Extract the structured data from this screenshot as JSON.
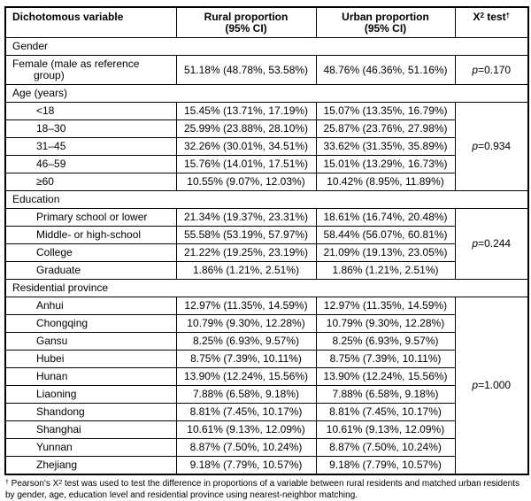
{
  "table": {
    "header": {
      "col1": "Dichotomous variable",
      "col2_line1": "Rural proportion",
      "col2_line2": "(95% CI)",
      "col3_line1": "Urban proportion",
      "col3_line2": "(95% CI)",
      "col4_base": "X",
      "col4_sup": "2",
      "col4_rest": " test",
      "col4_dagger": "†"
    },
    "sections": [
      {
        "label": "Gender",
        "p_label": "p",
        "p_value": "=0.170",
        "rows": [
          {
            "variable": "Female (male as reference group)",
            "rural": "51.18% (48.78%, 53.58%)",
            "urban": "48.76% (46.36%, 51.16%)"
          }
        ]
      },
      {
        "label": "Age (years)",
        "p_label": "p",
        "p_value": "=0.934",
        "rows": [
          {
            "variable": "<18",
            "rural": "15.45% (13.71%, 17.19%)",
            "urban": "15.07% (13.35%, 16.79%)"
          },
          {
            "variable": "18–30",
            "rural": "25.99% (23.88%, 28.10%)",
            "urban": "25.87% (23.76%, 27.98%)"
          },
          {
            "variable": "31–45",
            "rural": "32.26% (30.01%, 34.51%)",
            "urban": "33.62% (31.35%, 35.89%)"
          },
          {
            "variable": "46–59",
            "rural": "15.76% (14.01%, 17.51%)",
            "urban": "15.01% (13.29%, 16.73%)"
          },
          {
            "variable": "≥60",
            "rural": "10.55% (9.07%, 12.03%)",
            "urban": "10.42% (8.95%, 11.89%)"
          }
        ]
      },
      {
        "label": "Education",
        "p_label": "p",
        "p_value": "=0.244",
        "rows": [
          {
            "variable": "Primary school or lower",
            "rural": "21.34% (19.37%, 23.31%)",
            "urban": "18.61% (16.74%, 20.48%)"
          },
          {
            "variable": "Middle- or high-school",
            "rural": "55.58% (53.19%, 57.97%)",
            "urban": "58.44% (56.07%, 60.81%)"
          },
          {
            "variable": "College",
            "rural": "21.22% (19.25%, 23.19%)",
            "urban": "21.09% (19.13%, 23.05%)"
          },
          {
            "variable": "Graduate",
            "rural": "1.86% (1.21%, 2.51%)",
            "urban": "1.86% (1.21%, 2.51%)"
          }
        ]
      },
      {
        "label": "Residential province",
        "p_label": "p",
        "p_value": "=1.000",
        "rows": [
          {
            "variable": "Anhui",
            "rural": "12.97% (11.35%, 14.59%)",
            "urban": "12.97% (11.35%, 14.59%)"
          },
          {
            "variable": "Chongqing",
            "rural": "10.79% (9.30%, 12.28%)",
            "urban": "10.79% (9.30%, 12.28%)"
          },
          {
            "variable": "Gansu",
            "rural": "8.25% (6.93%, 9.57%)",
            "urban": "8.25% (6.93%, 9.57%)"
          },
          {
            "variable": "Hubei",
            "rural": "8.75% (7.39%, 10.11%)",
            "urban": "8.75% (7.39%, 10.11%)"
          },
          {
            "variable": "Hunan",
            "rural": "13.90% (12.24%, 15.56%)",
            "urban": "13.90% (12.24%, 15.56%)"
          },
          {
            "variable": "Liaoning",
            "rural": "7.88% (6.58%, 9.18%)",
            "urban": "7.88% (6.58%, 9.18%)"
          },
          {
            "variable": "Shandong",
            "rural": "8.81% (7.45%, 10.17%)",
            "urban": "8.81% (7.45%, 10.17%)"
          },
          {
            "variable": "Shanghai",
            "rural": "10.61% (9.13%, 12.09%)",
            "urban": "10.61% (9.13%, 12.09%)"
          },
          {
            "variable": "Yunnan",
            "rural": "8.87% (7.50%, 10.24%)",
            "urban": "8.87% (7.50%, 10.24%)"
          },
          {
            "variable": "Zhejiang",
            "rural": "9.18% (7.79%, 10.57%)",
            "urban": "9.18% (7.79%, 10.57%)"
          }
        ]
      }
    ],
    "footnote": {
      "dagger": "†",
      "pre": " Pearson's X",
      "sup": "2",
      "rest": " test was used to test the difference in proportions of a variable between rural residents and matched urban residents by gender, age, education level and residential province using nearest-neighbor matching."
    }
  }
}
